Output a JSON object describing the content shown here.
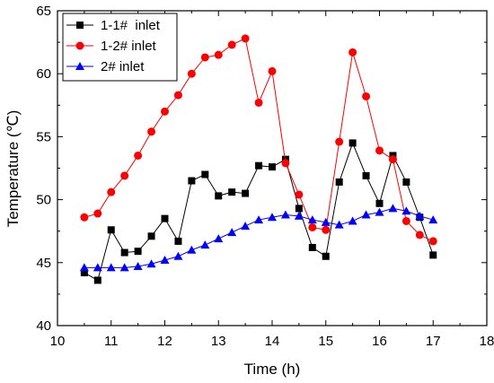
{
  "chart_data": {
    "type": "line",
    "xlabel": "Time (h)",
    "ylabel": "Temperature (℃)",
    "xlim": [
      10,
      18
    ],
    "ylim": [
      40,
      65
    ],
    "x_ticks": [
      10,
      11,
      12,
      13,
      14,
      15,
      16,
      17,
      18
    ],
    "y_ticks": [
      40,
      45,
      50,
      55,
      60,
      65
    ],
    "legend_position": "top-left",
    "grid": false,
    "series": [
      {
        "name": "1-1#  inlet",
        "color": "#000000",
        "marker": "square",
        "x": [
          10.5,
          10.75,
          11.0,
          11.25,
          11.5,
          11.75,
          12.0,
          12.25,
          12.5,
          12.75,
          13.0,
          13.25,
          13.5,
          13.75,
          14.0,
          14.25,
          14.5,
          14.75,
          15.0,
          15.25,
          15.5,
          15.75,
          16.0,
          16.25,
          16.5,
          16.75,
          17.0
        ],
        "values": [
          44.2,
          43.6,
          47.6,
          45.8,
          45.9,
          47.1,
          48.5,
          46.7,
          51.5,
          52.0,
          50.3,
          50.6,
          50.5,
          52.7,
          52.6,
          53.2,
          49.3,
          46.2,
          45.5,
          51.4,
          54.5,
          51.9,
          49.7,
          53.5,
          51.4,
          48.6,
          45.6
        ]
      },
      {
        "name": "1-2# inlet",
        "color": "#ff0000",
        "marker": "circle",
        "x": [
          10.5,
          10.75,
          11.0,
          11.25,
          11.5,
          11.75,
          12.0,
          12.25,
          12.5,
          12.75,
          13.0,
          13.25,
          13.5,
          13.75,
          14.0,
          14.25,
          14.5,
          14.75,
          15.0,
          15.25,
          15.5,
          15.75,
          16.0,
          16.25,
          16.5,
          16.75,
          17.0
        ],
        "values": [
          48.6,
          48.9,
          50.6,
          51.9,
          53.5,
          55.4,
          57.0,
          58.3,
          60.0,
          61.3,
          61.5,
          62.3,
          62.8,
          57.7,
          60.2,
          52.9,
          50.4,
          47.8,
          47.6,
          54.6,
          61.7,
          58.2,
          53.9,
          53.2,
          48.3,
          47.2,
          46.7
        ]
      },
      {
        "name": "2# inlet",
        "color": "#0000ff",
        "marker": "triangle",
        "x": [
          10.5,
          10.75,
          11.0,
          11.25,
          11.5,
          11.75,
          12.0,
          12.25,
          12.5,
          12.75,
          13.0,
          13.25,
          13.5,
          13.75,
          14.0,
          14.25,
          14.5,
          14.75,
          15.0,
          15.25,
          15.5,
          15.75,
          16.0,
          16.25,
          16.5,
          16.75,
          17.0
        ],
        "values": [
          44.6,
          44.6,
          44.6,
          44.6,
          44.7,
          44.9,
          45.2,
          45.5,
          46.0,
          46.4,
          46.9,
          47.4,
          47.9,
          48.4,
          48.6,
          48.8,
          48.7,
          48.4,
          48.2,
          48.0,
          48.3,
          48.8,
          49.0,
          49.3,
          49.1,
          48.7,
          48.4
        ]
      }
    ]
  }
}
